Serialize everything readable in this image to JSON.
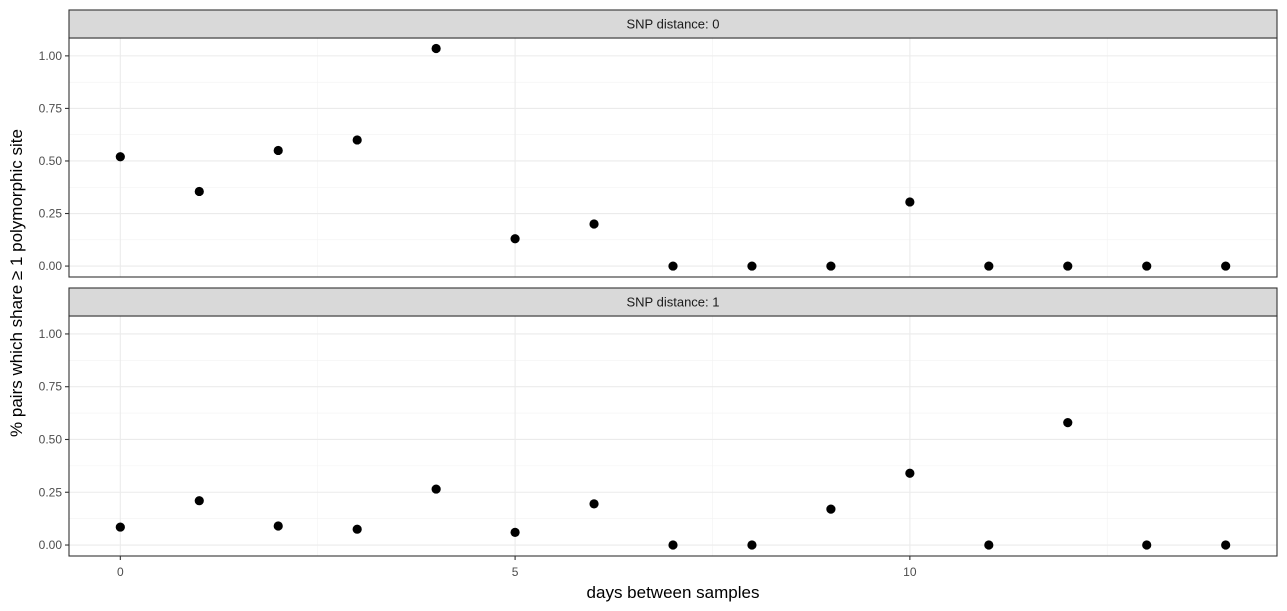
{
  "chart_data": {
    "type": "scatter",
    "xlabel": "days between samples",
    "ylabel": "% pairs which share ≥ 1 polymorphic site",
    "xlim": [
      -0.65,
      14.65
    ],
    "ylim": [
      -0.052,
      1.085
    ],
    "x_ticks": [
      0,
      5,
      10
    ],
    "x_tick_labels": [
      "0",
      "5",
      "10"
    ],
    "y_ticks": [
      0.0,
      0.25,
      0.5,
      0.75,
      1.0
    ],
    "y_tick_labels": [
      "0.00",
      "0.25",
      "0.50",
      "0.75",
      "1.00"
    ],
    "grid": true,
    "theme": "bw",
    "point_color": "#000000",
    "panels": [
      {
        "strip_label": "SNP distance: 0",
        "x": [
          0,
          1,
          2,
          3,
          4,
          5,
          6,
          7,
          8,
          9,
          10,
          11,
          12,
          13,
          14
        ],
        "y": [
          0.52,
          0.355,
          0.55,
          0.6,
          1.035,
          0.13,
          0.2,
          0.0,
          0.0,
          0.0,
          0.305,
          0.0,
          0.0,
          0.0,
          0.0
        ]
      },
      {
        "strip_label": "SNP distance: 1",
        "x": [
          0,
          1,
          2,
          3,
          4,
          5,
          6,
          7,
          8,
          9,
          10,
          11,
          12,
          13,
          14
        ],
        "y": [
          0.085,
          0.21,
          0.09,
          0.075,
          0.265,
          0.06,
          0.195,
          0.0,
          0.0,
          0.17,
          0.34,
          0.0,
          0.58,
          0.0,
          0.0
        ]
      }
    ]
  }
}
